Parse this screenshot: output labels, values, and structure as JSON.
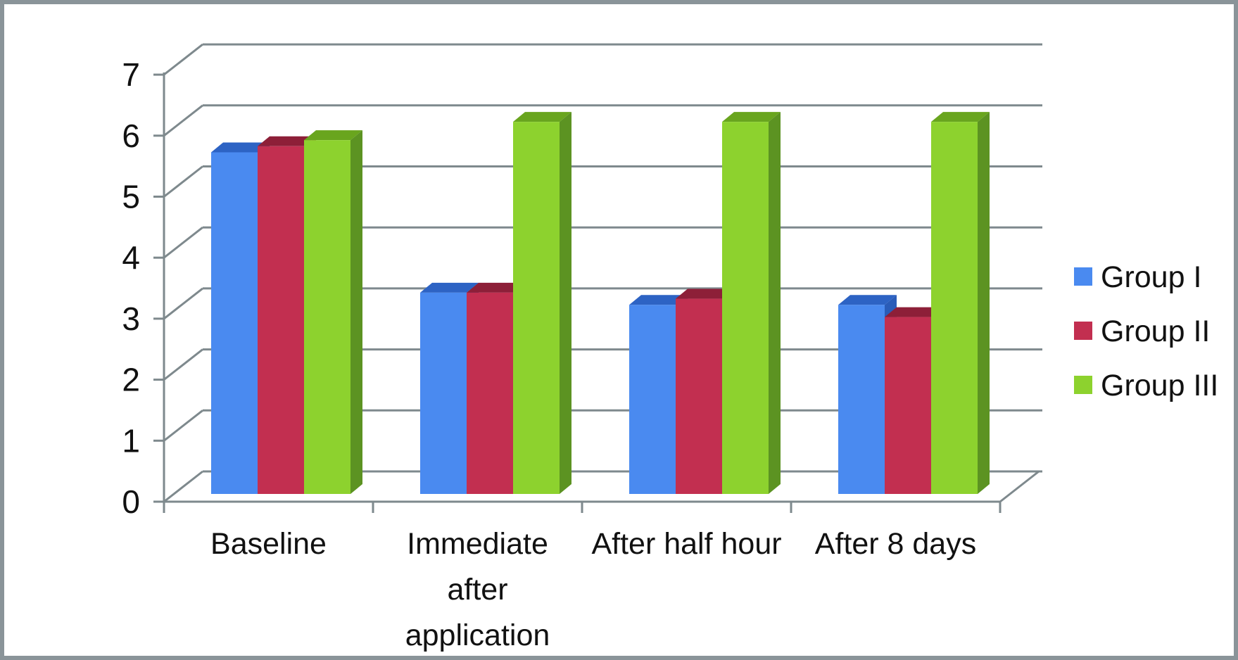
{
  "figure": {
    "background": "#ffffff",
    "border_color": "#8a9499"
  },
  "chart_data": {
    "type": "bar",
    "subtype": "3d-clustered-column",
    "title": "",
    "xlabel": "",
    "ylabel": "",
    "categories": [
      "Baseline",
      "Immediate after application",
      "After half hour",
      "After 8 days"
    ],
    "category_label_lines": [
      [
        "Baseline"
      ],
      [
        "Immediate",
        "after",
        "application"
      ],
      [
        "After half hour"
      ],
      [
        "After 8 days"
      ]
    ],
    "series": [
      {
        "name": "Group I",
        "color": "#4a8af0",
        "color_top": "#2d63c4",
        "color_side": "#2a5cb8",
        "values": [
          5.6,
          3.3,
          3.1,
          3.1
        ]
      },
      {
        "name": "Group II",
        "color": "#c22f50",
        "color_top": "#8d1f38",
        "color_side": "#9c2242",
        "values": [
          5.7,
          3.3,
          3.2,
          2.9
        ]
      },
      {
        "name": "Group III",
        "color": "#8dd22e",
        "color_top": "#69a51e",
        "color_side": "#5c9322",
        "values": [
          5.8,
          6.1,
          6.1,
          6.1
        ]
      }
    ],
    "ylim": [
      0,
      7
    ],
    "yticks": [
      0,
      1,
      2,
      3,
      4,
      5,
      6,
      7
    ],
    "grid": true,
    "legend_position": "right",
    "gridline_color": "#7e898d",
    "text_color": "#111111"
  }
}
